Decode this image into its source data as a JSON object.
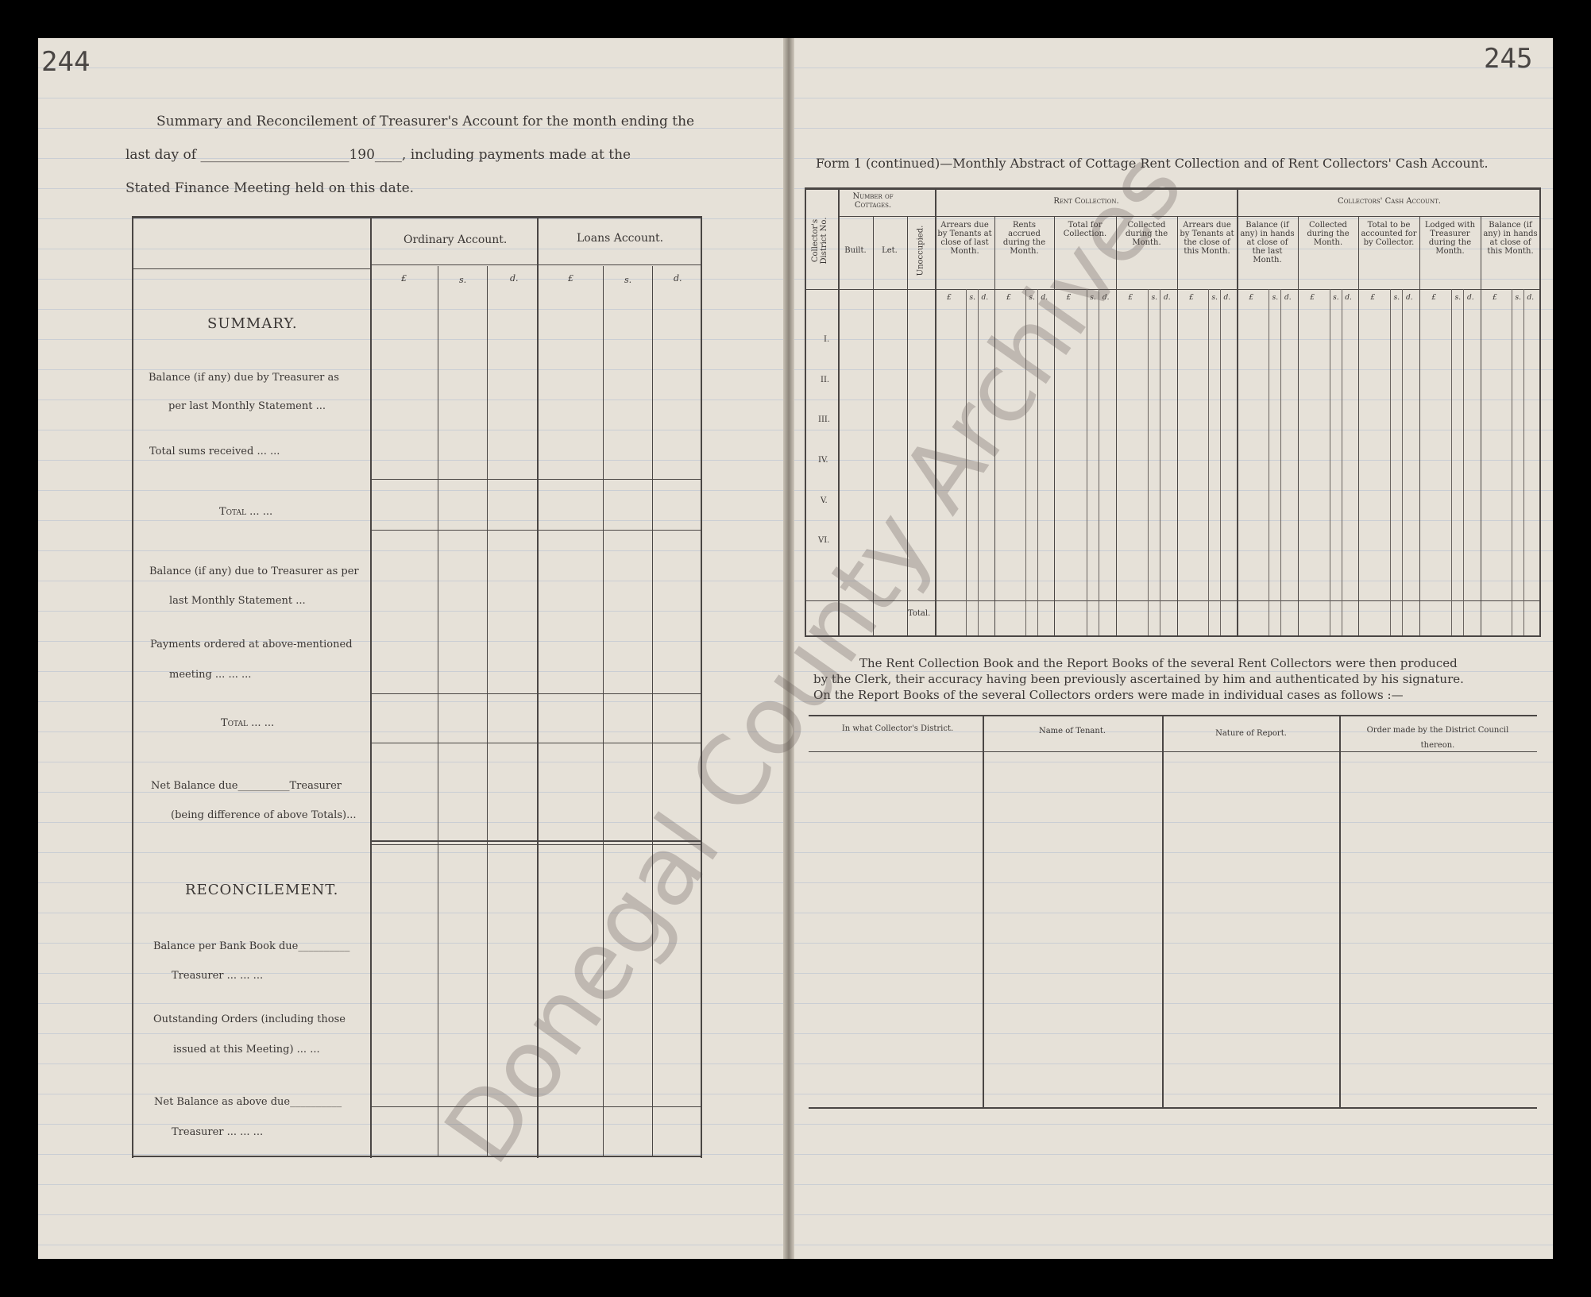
{
  "left_page": {
    "page_number": "244",
    "heading_lines": [
      "Summary and Reconcilement of Treasurer's Account for the month ending the",
      "last day of ______________________190____, including payments made at the",
      "Stated Finance Meeting held on this date."
    ],
    "columns": {
      "ordinary": "Ordinary Account.",
      "loans": "Loans Account.",
      "currency": [
        "£",
        "s.",
        "d.",
        "£",
        "s.",
        "d."
      ]
    },
    "summary_title": "SUMMARY.",
    "rows": [
      "Balance (if any) due by Treasurer as",
      "per last Monthly Statement ...",
      "Total sums received ... ...",
      "Total ... ...",
      "Balance (if any) due to Treasurer as per",
      "last Monthly Statement ...",
      "Payments ordered at above-mentioned",
      "meeting ... ... ...",
      "Total ... ...",
      "Net Balance due__________Treasurer",
      "(being difference of above Totals)..."
    ],
    "reconcilement_title": "RECONCILEMENT.",
    "reconcilement_rows": [
      "Balance per Bank Book due__________",
      "Treasurer ... ... ...",
      "Outstanding Orders (including those",
      "issued at this Meeting) ... ...",
      "Net Balance as above due__________",
      "Treasurer ... ... ..."
    ]
  },
  "right_page": {
    "page_number": "245",
    "title": "Form 1 (continued)—Monthly Abstract of Cottage Rent Collection and of Rent Collectors' Cash Account.",
    "table": {
      "district_header": "Collector's District No.",
      "groups": [
        "Number of Cottages.",
        "Rent Collection.",
        "Collectors' Cash Account."
      ],
      "cottage_columns": [
        "Built.",
        "Let.",
        "Unoccupied."
      ],
      "money_columns": [
        "Arrears due by Tenants at close of last Month.",
        "Rents accrued during the Month.",
        "Total for Collection.",
        "Collected during the Month.",
        "Arrears due by Tenants at the close of this Month.",
        "Balance (if any) in hands at close of the last Month.",
        "Collected during the Month.",
        "Total to be accounted for by Collector.",
        "Lodged with Treasurer during the Month.",
        "Balance (if any) in hands at close of this Month."
      ],
      "currency": [
        "£",
        "s.",
        "d."
      ],
      "districts": [
        "I.",
        "II.",
        "III.",
        "IV.",
        "V.",
        "VI."
      ],
      "total_label": "Total."
    },
    "paragraph": [
      "The Rent Collection Book and the Report Books of the several Rent Collectors were then produced",
      "by the Clerk, their accuracy having been previously ascertained by him and authenticated by his signature.",
      "On the Report Books of the several Collectors orders were made in individual cases as follows :—"
    ],
    "orders_table": [
      "In what Collector's District.",
      "Name of Tenant.",
      "Nature of Report.",
      "Order made by the District Council thereon."
    ]
  },
  "watermark": "Donegal County Archives"
}
